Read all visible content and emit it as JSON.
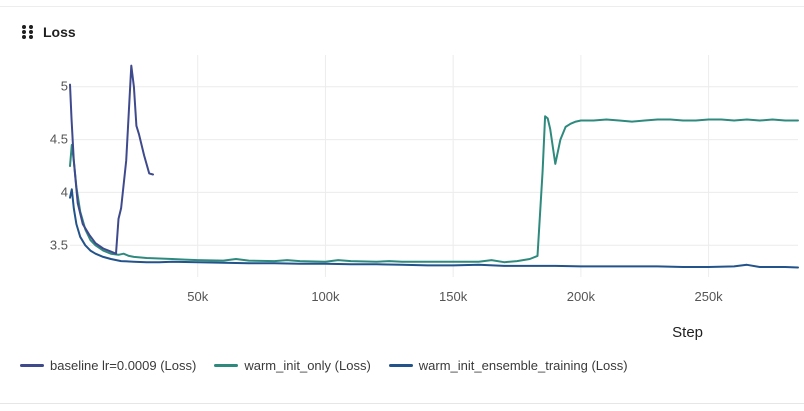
{
  "panel": {
    "title": "Loss"
  },
  "chart_data": {
    "type": "line",
    "title": "Loss",
    "xlabel": "Step",
    "ylabel": "",
    "xlim": [
      0,
      285000
    ],
    "ylim": [
      3.2,
      5.3
    ],
    "x_ticks": [
      50000,
      100000,
      150000,
      200000,
      250000
    ],
    "x_tick_labels": [
      "50k",
      "100k",
      "150k",
      "200k",
      "250k"
    ],
    "y_ticks": [
      3.5,
      4,
      4.5,
      5
    ],
    "y_tick_labels": [
      "3.5",
      "4",
      "4.5",
      "5"
    ],
    "grid": true,
    "legend_position": "bottom-left",
    "series": [
      {
        "name": "baseline lr=0.0009 (Loss)",
        "color": "#3f4a8c",
        "x": [
          0,
          600,
          1500,
          3000,
          5000,
          7500,
          10000,
          13000,
          16000,
          18000,
          19000,
          20000,
          22000,
          24000,
          25000,
          26000,
          27000,
          29000,
          31000,
          32500
        ],
        "y": [
          5.02,
          4.7,
          4.3,
          3.9,
          3.7,
          3.6,
          3.52,
          3.47,
          3.44,
          3.42,
          3.75,
          3.85,
          4.3,
          5.2,
          5.0,
          4.63,
          4.55,
          4.35,
          4.18,
          4.17
        ]
      },
      {
        "name": "warm_init_only (Loss)",
        "color": "#2f8a7e",
        "x": [
          0,
          700,
          1500,
          2500,
          4000,
          6000,
          8000,
          10000,
          13000,
          16000,
          19000,
          21000,
          23000,
          25000,
          30000,
          35000,
          40000,
          45000,
          50000,
          60000,
          65000,
          70000,
          80000,
          85000,
          90000,
          100000,
          105000,
          110000,
          120000,
          125000,
          130000,
          140000,
          150000,
          160000,
          165000,
          170000,
          175000,
          180000,
          183000,
          185000,
          186000,
          187000,
          188000,
          190000,
          192000,
          194000,
          196000,
          198000,
          200000,
          205000,
          210000,
          215000,
          220000,
          225000,
          230000,
          235000,
          240000,
          245000,
          250000,
          255000,
          260000,
          265000,
          270000,
          275000,
          280000,
          285000
        ],
        "y": [
          4.25,
          4.45,
          4.3,
          4.05,
          3.82,
          3.65,
          3.55,
          3.5,
          3.45,
          3.42,
          3.41,
          3.42,
          3.4,
          3.39,
          3.38,
          3.375,
          3.37,
          3.365,
          3.36,
          3.355,
          3.37,
          3.355,
          3.35,
          3.36,
          3.35,
          3.345,
          3.36,
          3.35,
          3.345,
          3.35,
          3.345,
          3.345,
          3.345,
          3.345,
          3.36,
          3.34,
          3.35,
          3.37,
          3.4,
          4.2,
          4.72,
          4.7,
          4.6,
          4.27,
          4.5,
          4.62,
          4.65,
          4.67,
          4.68,
          4.68,
          4.69,
          4.68,
          4.67,
          4.68,
          4.69,
          4.69,
          4.68,
          4.68,
          4.69,
          4.69,
          4.68,
          4.69,
          4.68,
          4.69,
          4.68,
          4.68
        ]
      },
      {
        "name": "warm_init_ensemble_training (Loss)",
        "color": "#22538a",
        "x": [
          0,
          700,
          1500,
          2500,
          4000,
          6000,
          8000,
          10000,
          13000,
          16000,
          20000,
          25000,
          30000,
          35000,
          40000,
          50000,
          60000,
          70000,
          80000,
          90000,
          100000,
          110000,
          120000,
          130000,
          140000,
          150000,
          160000,
          170000,
          180000,
          190000,
          200000,
          210000,
          220000,
          230000,
          240000,
          250000,
          260000,
          265000,
          270000,
          280000,
          285000
        ],
        "y": [
          3.95,
          4.03,
          3.85,
          3.7,
          3.58,
          3.5,
          3.45,
          3.42,
          3.39,
          3.37,
          3.35,
          3.345,
          3.34,
          3.34,
          3.345,
          3.34,
          3.335,
          3.33,
          3.33,
          3.325,
          3.325,
          3.32,
          3.32,
          3.315,
          3.31,
          3.31,
          3.315,
          3.305,
          3.305,
          3.305,
          3.3,
          3.3,
          3.3,
          3.3,
          3.295,
          3.295,
          3.3,
          3.315,
          3.295,
          3.295,
          3.29
        ]
      }
    ]
  }
}
